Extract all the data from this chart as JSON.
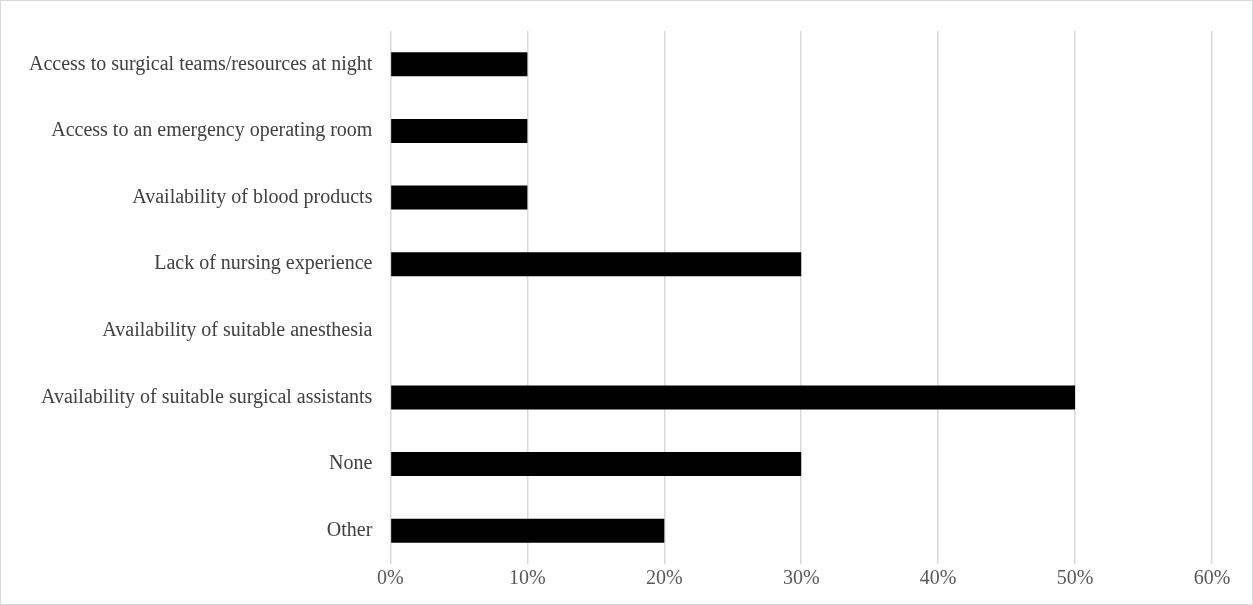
{
  "chart_data": {
    "type": "bar",
    "orientation": "horizontal",
    "categories": [
      "Access to surgical teams/resources at night",
      "Access to an emergency operating room",
      "Availability of blood products",
      "Lack of nursing experience",
      "Availability of suitable anesthesia",
      "Availability of suitable surgical assistants",
      "None",
      "Other"
    ],
    "values": [
      10,
      10,
      10,
      30,
      0,
      50,
      30,
      20
    ],
    "color": "#000000",
    "xlim": [
      0,
      60
    ],
    "xticks": [
      {
        "value": 0,
        "label": "0%"
      },
      {
        "value": 10,
        "label": "10%"
      },
      {
        "value": 20,
        "label": "20%"
      },
      {
        "value": 30,
        "label": "30%"
      },
      {
        "value": 40,
        "label": "40%"
      },
      {
        "value": 50,
        "label": "50%"
      },
      {
        "value": 60,
        "label": "60%"
      }
    ],
    "grid": "x",
    "legend": false
  }
}
